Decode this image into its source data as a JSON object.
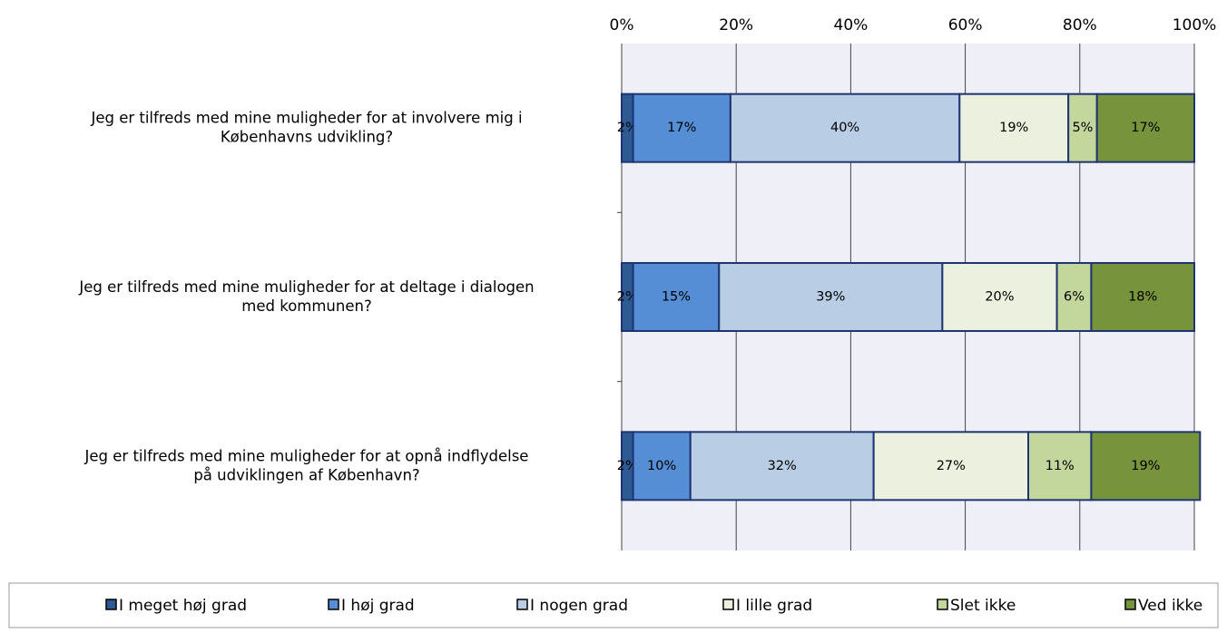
{
  "chart_data": {
    "type": "stacked_bar_horizontal",
    "categories": [
      "Jeg er tilfreds med mine muligheder for at involvere mig i\nKøbenhavns udvikling?",
      "Jeg er tilfreds med mine muligheder for at deltage i dialogen\nmed kommunen?",
      "Jeg er tilfreds med mine muligheder for at opnå indflydelse\npå udviklingen af København?"
    ],
    "series": [
      {
        "name": "I meget høj grad",
        "color": "#2e5a94",
        "values": [
          2,
          2,
          2
        ],
        "value_labels": [
          "2%",
          "2%",
          "2%"
        ]
      },
      {
        "name": "I høj grad",
        "color": "#558ed5",
        "values": [
          17,
          15,
          10
        ],
        "value_labels": [
          "17%",
          "15%",
          "10%"
        ]
      },
      {
        "name": "I nogen grad",
        "color": "#b9cde5",
        "values": [
          40,
          39,
          32
        ],
        "value_labels": [
          "40%",
          "39%",
          "32%"
        ]
      },
      {
        "name": "I lille grad",
        "color": "#ebf1de",
        "values": [
          19,
          20,
          27
        ],
        "value_labels": [
          "19%",
          "20%",
          "27%"
        ]
      },
      {
        "name": "Slet ikke",
        "color": "#c3d69b",
        "values": [
          5,
          6,
          11
        ],
        "value_labels": [
          "5%",
          "6%",
          "11%"
        ]
      },
      {
        "name": "Ved ikke",
        "color": "#77933c",
        "values": [
          17,
          18,
          19
        ],
        "value_labels": [
          "17%",
          "18%",
          "19%"
        ]
      }
    ],
    "xlim": [
      0,
      100
    ],
    "xticks": [
      {
        "value": 0,
        "label": "0%"
      },
      {
        "value": 20,
        "label": "20%"
      },
      {
        "value": 40,
        "label": "40%"
      },
      {
        "value": 60,
        "label": "60%"
      },
      {
        "value": 80,
        "label": "80%"
      },
      {
        "value": 100,
        "label": "100%"
      }
    ],
    "grid": true,
    "legend": "bottom"
  }
}
